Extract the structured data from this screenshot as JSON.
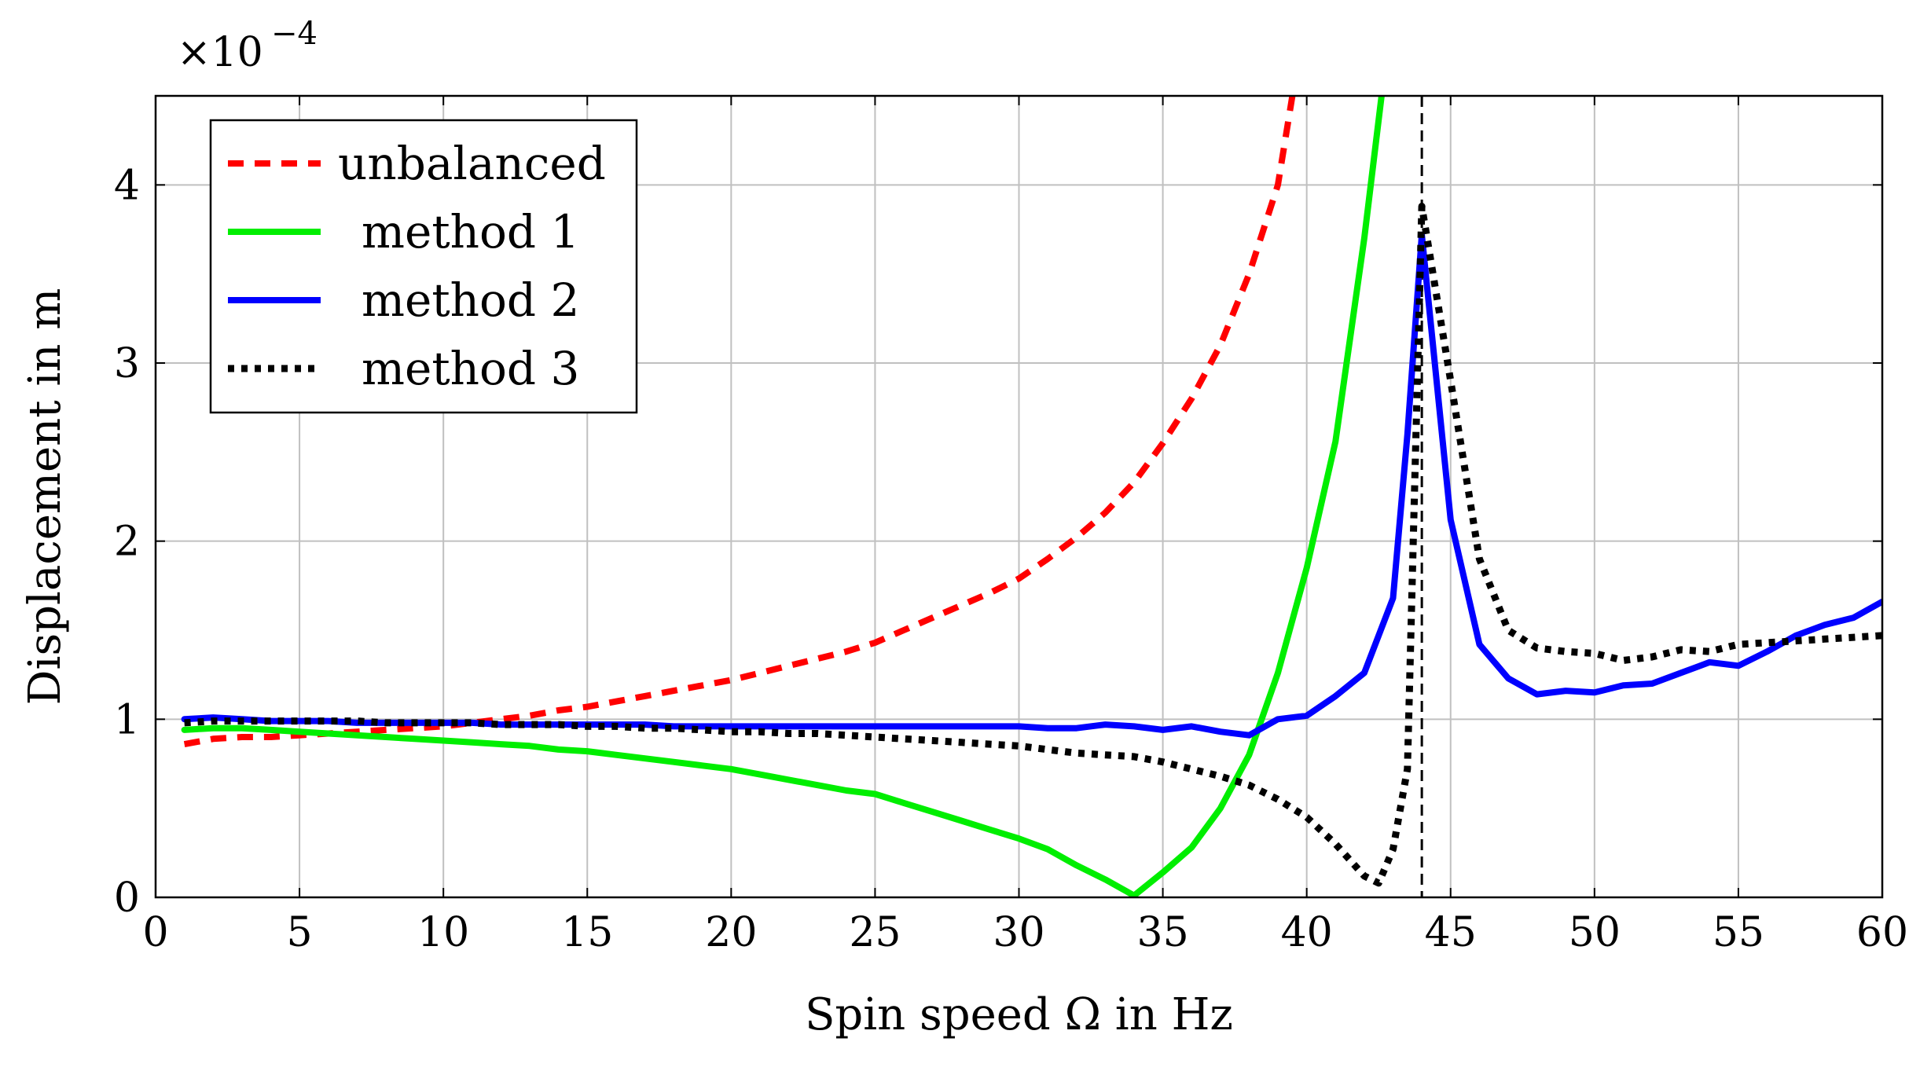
{
  "chart_data": {
    "type": "line",
    "title": "",
    "xlabel": "Spin speed Ω in Hz",
    "ylabel": "Displacement in m",
    "scale_multiplier": {
      "base": "×10",
      "exponent": "−4"
    },
    "xlim": [
      0,
      60
    ],
    "ylim": [
      0,
      4.5
    ],
    "xticks": [
      0,
      5,
      10,
      15,
      20,
      25,
      30,
      35,
      40,
      45,
      50,
      55,
      60
    ],
    "yticks": [
      0,
      1,
      2,
      3,
      4
    ],
    "grid": true,
    "legend_position": "top-left",
    "reference_line": {
      "x": 44,
      "style": "dashed",
      "color": "#000000"
    },
    "series": [
      {
        "name": "unbalanced",
        "color": "#ff0000",
        "style": "dashed",
        "x": [
          1,
          2,
          3,
          4,
          5,
          6,
          7,
          8,
          9,
          10,
          11,
          12,
          13,
          14,
          15,
          16,
          17,
          18,
          19,
          20,
          21,
          22,
          23,
          24,
          25,
          26,
          27,
          28,
          29,
          30,
          31,
          32,
          33,
          34,
          35,
          36,
          37,
          38,
          39,
          39.5
        ],
        "y": [
          0.86,
          0.89,
          0.9,
          0.9,
          0.91,
          0.92,
          0.93,
          0.94,
          0.95,
          0.96,
          0.98,
          1.0,
          1.02,
          1.05,
          1.07,
          1.1,
          1.13,
          1.16,
          1.19,
          1.22,
          1.26,
          1.3,
          1.34,
          1.38,
          1.43,
          1.5,
          1.57,
          1.64,
          1.71,
          1.79,
          1.9,
          2.02,
          2.16,
          2.33,
          2.55,
          2.8,
          3.1,
          3.5,
          4.0,
          4.5
        ]
      },
      {
        "name": "method 1",
        "color": "#00ee00",
        "style": "solid",
        "x": [
          1,
          2,
          3,
          4,
          5,
          6,
          7,
          8,
          9,
          10,
          11,
          12,
          13,
          14,
          15,
          16,
          17,
          18,
          19,
          20,
          21,
          22,
          23,
          24,
          25,
          26,
          27,
          28,
          29,
          30,
          31,
          32,
          33,
          34,
          35,
          36,
          37,
          38,
          39,
          40,
          41,
          42,
          42.6
        ],
        "y": [
          0.94,
          0.95,
          0.95,
          0.94,
          0.93,
          0.92,
          0.91,
          0.9,
          0.89,
          0.88,
          0.87,
          0.86,
          0.85,
          0.83,
          0.82,
          0.8,
          0.78,
          0.76,
          0.74,
          0.72,
          0.69,
          0.66,
          0.63,
          0.6,
          0.58,
          0.53,
          0.48,
          0.43,
          0.38,
          0.33,
          0.27,
          0.18,
          0.1,
          0.01,
          0.14,
          0.28,
          0.5,
          0.8,
          1.26,
          1.85,
          2.56,
          3.7,
          4.5
        ]
      },
      {
        "name": "method 2",
        "color": "#0000ff",
        "style": "solid",
        "x": [
          1,
          2,
          3,
          4,
          5,
          6,
          7,
          8,
          9,
          10,
          11,
          12,
          13,
          14,
          15,
          16,
          17,
          18,
          19,
          20,
          21,
          22,
          23,
          24,
          25,
          26,
          27,
          28,
          29,
          30,
          31,
          32,
          33,
          34,
          35,
          36,
          37,
          38,
          39,
          40,
          41,
          42,
          43,
          43.5,
          44,
          45,
          46,
          47,
          48,
          49,
          50,
          51,
          52,
          53,
          54,
          55,
          56,
          57,
          58,
          59,
          60
        ],
        "y": [
          1.0,
          1.01,
          1.0,
          0.99,
          0.99,
          0.99,
          0.98,
          0.98,
          0.98,
          0.98,
          0.98,
          0.97,
          0.97,
          0.97,
          0.97,
          0.97,
          0.97,
          0.96,
          0.96,
          0.96,
          0.96,
          0.96,
          0.96,
          0.96,
          0.96,
          0.96,
          0.96,
          0.96,
          0.96,
          0.96,
          0.95,
          0.95,
          0.97,
          0.96,
          0.94,
          0.96,
          0.93,
          0.91,
          1.0,
          1.02,
          1.13,
          1.26,
          1.68,
          2.6,
          3.72,
          2.12,
          1.42,
          1.23,
          1.14,
          1.16,
          1.15,
          1.19,
          1.2,
          1.26,
          1.32,
          1.3,
          1.38,
          1.47,
          1.53,
          1.57,
          1.66
        ]
      },
      {
        "name": "method 3",
        "color": "#000000",
        "style": "dotted",
        "x": [
          1,
          2,
          3,
          4,
          5,
          6,
          7,
          8,
          9,
          10,
          11,
          12,
          13,
          14,
          15,
          16,
          17,
          18,
          19,
          20,
          21,
          22,
          23,
          24,
          25,
          26,
          27,
          28,
          29,
          30,
          31,
          32,
          33,
          34,
          35,
          36,
          37,
          38,
          39,
          40,
          41,
          42,
          42.5,
          43,
          43.5,
          44,
          45,
          46,
          47,
          48,
          49,
          50,
          51,
          52,
          53,
          54,
          55,
          56,
          57,
          58,
          59,
          60
        ],
        "y": [
          0.98,
          0.99,
          0.99,
          0.99,
          0.99,
          0.99,
          0.99,
          0.98,
          0.98,
          0.98,
          0.98,
          0.97,
          0.97,
          0.97,
          0.96,
          0.96,
          0.95,
          0.95,
          0.94,
          0.93,
          0.93,
          0.92,
          0.92,
          0.91,
          0.9,
          0.89,
          0.88,
          0.87,
          0.86,
          0.85,
          0.83,
          0.81,
          0.8,
          0.79,
          0.76,
          0.72,
          0.68,
          0.63,
          0.55,
          0.45,
          0.3,
          0.12,
          0.08,
          0.27,
          0.72,
          3.88,
          2.9,
          1.9,
          1.5,
          1.4,
          1.38,
          1.37,
          1.33,
          1.35,
          1.39,
          1.38,
          1.42,
          1.43,
          1.44,
          1.45,
          1.46,
          1.47
        ]
      }
    ]
  }
}
